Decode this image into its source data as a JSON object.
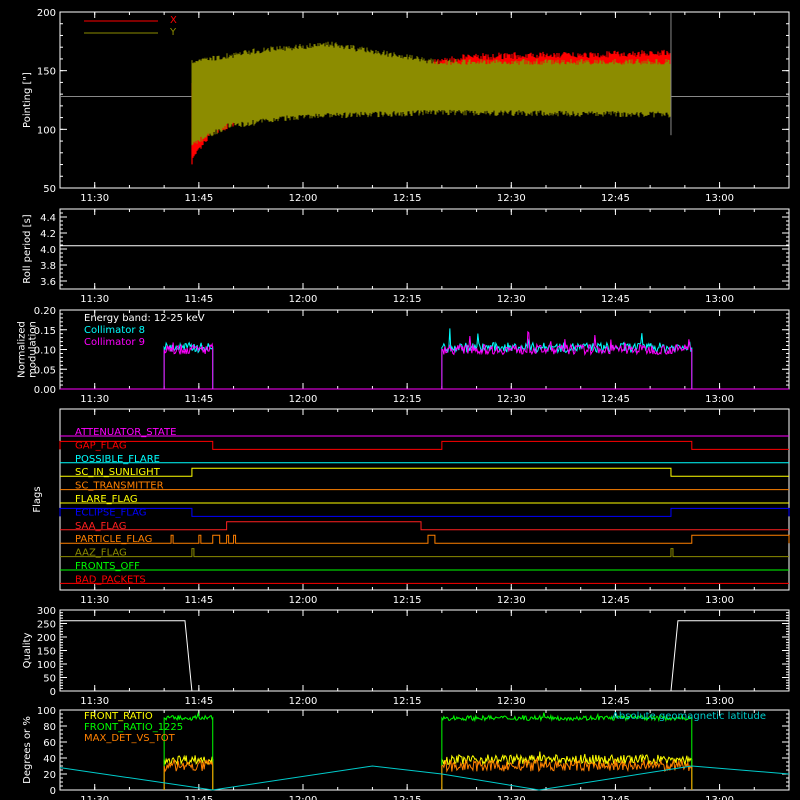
{
  "time_axis": {
    "start": "11:25",
    "end": "13:10",
    "tick_labels": [
      "11:30",
      "11:45",
      "12:00",
      "12:15",
      "12:30",
      "12:45",
      "13:00"
    ],
    "tick_minutes": [
      "11:30",
      "11:45",
      "12:00",
      "12:15",
      "12:30",
      "12:45",
      "13:00"
    ]
  },
  "colors": {
    "background": "#000000",
    "axes": "#ffffff",
    "x_series": "#ff0000",
    "y_series": "#8c8c00",
    "collimator_8": "#00ffff",
    "collimator_9": "#ff00ff",
    "front_ratio": "#ffff00",
    "front_ratio_1225": "#00ff00",
    "max_det_vs_tot": "#ff8000",
    "latitude": "#00cccc"
  },
  "chart_data": [
    {
      "type": "line",
      "panel": "pointing",
      "ylabel": "Pointing [\"]",
      "ylim": [
        50,
        200
      ],
      "yticks": [
        "50",
        "100",
        "150",
        "200"
      ],
      "series": [
        {
          "name": "X",
          "color": "#ff0000",
          "segments": [
            {
              "t_start": "11:25",
              "t_end": "11:44",
              "value": 128
            },
            {
              "t_start": "11:44",
              "t_end": "12:53",
              "envelope_low": [
                [
                  0,
                  70
                ],
                [
                  3,
                  95
                ],
                [
                  10,
                  110
                ],
                [
                  25,
                  117
                ],
                [
                  40,
                  120
                ],
                [
                  69,
                  122
                ]
              ],
              "envelope_high": [
                [
                  0,
                  145
                ],
                [
                  10,
                  150
                ],
                [
                  30,
                  155
                ],
                [
                  40,
                  165
                ],
                [
                  69,
                  168
                ]
              ]
            },
            {
              "t_start": "12:53",
              "t_end": "13:10",
              "value": 128
            }
          ]
        },
        {
          "name": "Y",
          "color": "#8c8c00",
          "segments": [
            {
              "t_start": "11:44",
              "t_end": "12:53",
              "envelope_low": [
                [
                  0,
                  85
                ],
                [
                  5,
                  100
                ],
                [
                  15,
                  108
                ],
                [
                  35,
                  112
                ],
                [
                  69,
                  110
                ]
              ],
              "envelope_high": [
                [
                  0,
                  160
                ],
                [
                  10,
                  170
                ],
                [
                  20,
                  175
                ],
                [
                  35,
                  160
                ],
                [
                  69,
                  160
                ]
              ]
            }
          ]
        }
      ]
    },
    {
      "type": "line",
      "panel": "roll_period",
      "ylabel": "Roll period [s]",
      "ylim": [
        3.5,
        4.5
      ],
      "yticks": [
        "3.6",
        "3.8",
        "4.0",
        "4.2",
        "4.4"
      ],
      "series": [
        {
          "color": "#ffffff",
          "value": 4.04
        }
      ]
    },
    {
      "type": "line",
      "panel": "modulation",
      "ylabel": "Normalized modulation",
      "ylim": [
        0,
        0.2
      ],
      "yticks": [
        "0.00",
        "0.05",
        "0.10",
        "0.15",
        "0.20"
      ],
      "annotation": "Energy band: 12-25 keV",
      "series": [
        {
          "name": "Collimator 8",
          "color": "#00ffff",
          "intervals": [
            [
              "11:40",
              "11:47"
            ],
            [
              "12:20",
              "12:56"
            ]
          ],
          "mean": 0.105
        },
        {
          "name": "Collimator 9",
          "color": "#ff00ff",
          "intervals": [
            [
              "11:40",
              "11:47"
            ],
            [
              "12:20",
              "12:56"
            ]
          ],
          "mean": 0.1
        }
      ]
    },
    {
      "type": "line",
      "panel": "flags",
      "ylabel": "Flags",
      "flags": [
        {
          "name": "ATTENUATOR_STATE",
          "color": "#ff00ff",
          "high": []
        },
        {
          "name": "GAP_FLAG",
          "color": "#ff0000",
          "high": [
            [
              "11:25",
              "11:47"
            ],
            [
              "12:20",
              "12:56"
            ]
          ]
        },
        {
          "name": "POSSIBLE_FLARE",
          "color": "#00ffff",
          "high": []
        },
        {
          "name": "SC_IN_SUNLIGHT",
          "color": "#ffff00",
          "high": [
            [
              "11:44",
              "12:53"
            ]
          ]
        },
        {
          "name": "SC_TRANSMITTER",
          "color": "#ff8000",
          "high": []
        },
        {
          "name": "FLARE_FLAG",
          "color": "#ffff00",
          "high": []
        },
        {
          "name": "ECLIPSE_FLAG",
          "color": "#0000ff",
          "high": [
            [
              "11:25",
              "11:44"
            ],
            [
              "12:53",
              "13:10"
            ]
          ]
        },
        {
          "name": "SAA_FLAG",
          "color": "#ff2020",
          "high": [
            [
              "11:49",
              "12:17"
            ]
          ]
        },
        {
          "name": "PARTICLE_FLAG",
          "color": "#ff8000",
          "high": [
            [
              "11:41",
              "11:41"
            ],
            [
              "11:45",
              "11:45"
            ],
            [
              "11:47",
              "11:48"
            ],
            [
              "11:49",
              "11:49"
            ],
            [
              "11:50",
              "11:50"
            ],
            [
              "12:18",
              "12:19"
            ],
            [
              "12:56",
              "13:10"
            ]
          ]
        },
        {
          "name": "AAZ_FLAG",
          "color": "#8c8c00",
          "high": [
            [
              "11:44",
              "11:44"
            ],
            [
              "12:53",
              "12:53"
            ]
          ]
        },
        {
          "name": "FRONTS_OFF",
          "color": "#00ff00",
          "high": []
        },
        {
          "name": "BAD_PACKETS",
          "color": "#ff0000",
          "high": []
        }
      ]
    },
    {
      "type": "line",
      "panel": "quality",
      "ylabel": "Quality",
      "ylim": [
        0,
        300
      ],
      "yticks": [
        "0",
        "50",
        "100",
        "150",
        "200",
        "250",
        "300"
      ],
      "series": [
        {
          "color": "#ffffff",
          "points": [
            [
              "11:25",
              260
            ],
            [
              "11:43",
              260
            ],
            [
              "11:44",
              0
            ],
            [
              "12:53",
              0
            ],
            [
              "12:54",
              260
            ],
            [
              "13:10",
              260
            ]
          ]
        }
      ]
    },
    {
      "type": "line",
      "panel": "ratios",
      "ylabel": "Degrees or %",
      "ylim": [
        0,
        100
      ],
      "yticks": [
        "0",
        "20",
        "40",
        "60",
        "80",
        "100"
      ],
      "series": [
        {
          "name": "FRONT_RATIO",
          "color": "#ffff00",
          "intervals": [
            [
              "11:40",
              "11:47"
            ],
            [
              "12:20",
              "12:56"
            ]
          ],
          "mean": 38
        },
        {
          "name": "FRONT_RATIO_1225",
          "color": "#00ff00",
          "intervals": [
            [
              "11:40",
              "11:47"
            ],
            [
              "12:20",
              "12:56"
            ]
          ],
          "mean": 90
        },
        {
          "name": "MAX_DET_VS_TOT",
          "color": "#ff8000",
          "intervals": [
            [
              "11:40",
              "11:47"
            ],
            [
              "12:20",
              "12:56"
            ]
          ],
          "mean": 30
        },
        {
          "name": "Absolute geomagnetic latitude",
          "color": "#00cccc",
          "points": [
            [
              "11:25",
              28
            ],
            [
              "11:47",
              0
            ],
            [
              "12:10",
              30
            ],
            [
              "12:20",
              20
            ],
            [
              "12:34",
              0
            ],
            [
              "12:56",
              30
            ],
            [
              "13:10",
              20
            ]
          ]
        }
      ]
    }
  ]
}
